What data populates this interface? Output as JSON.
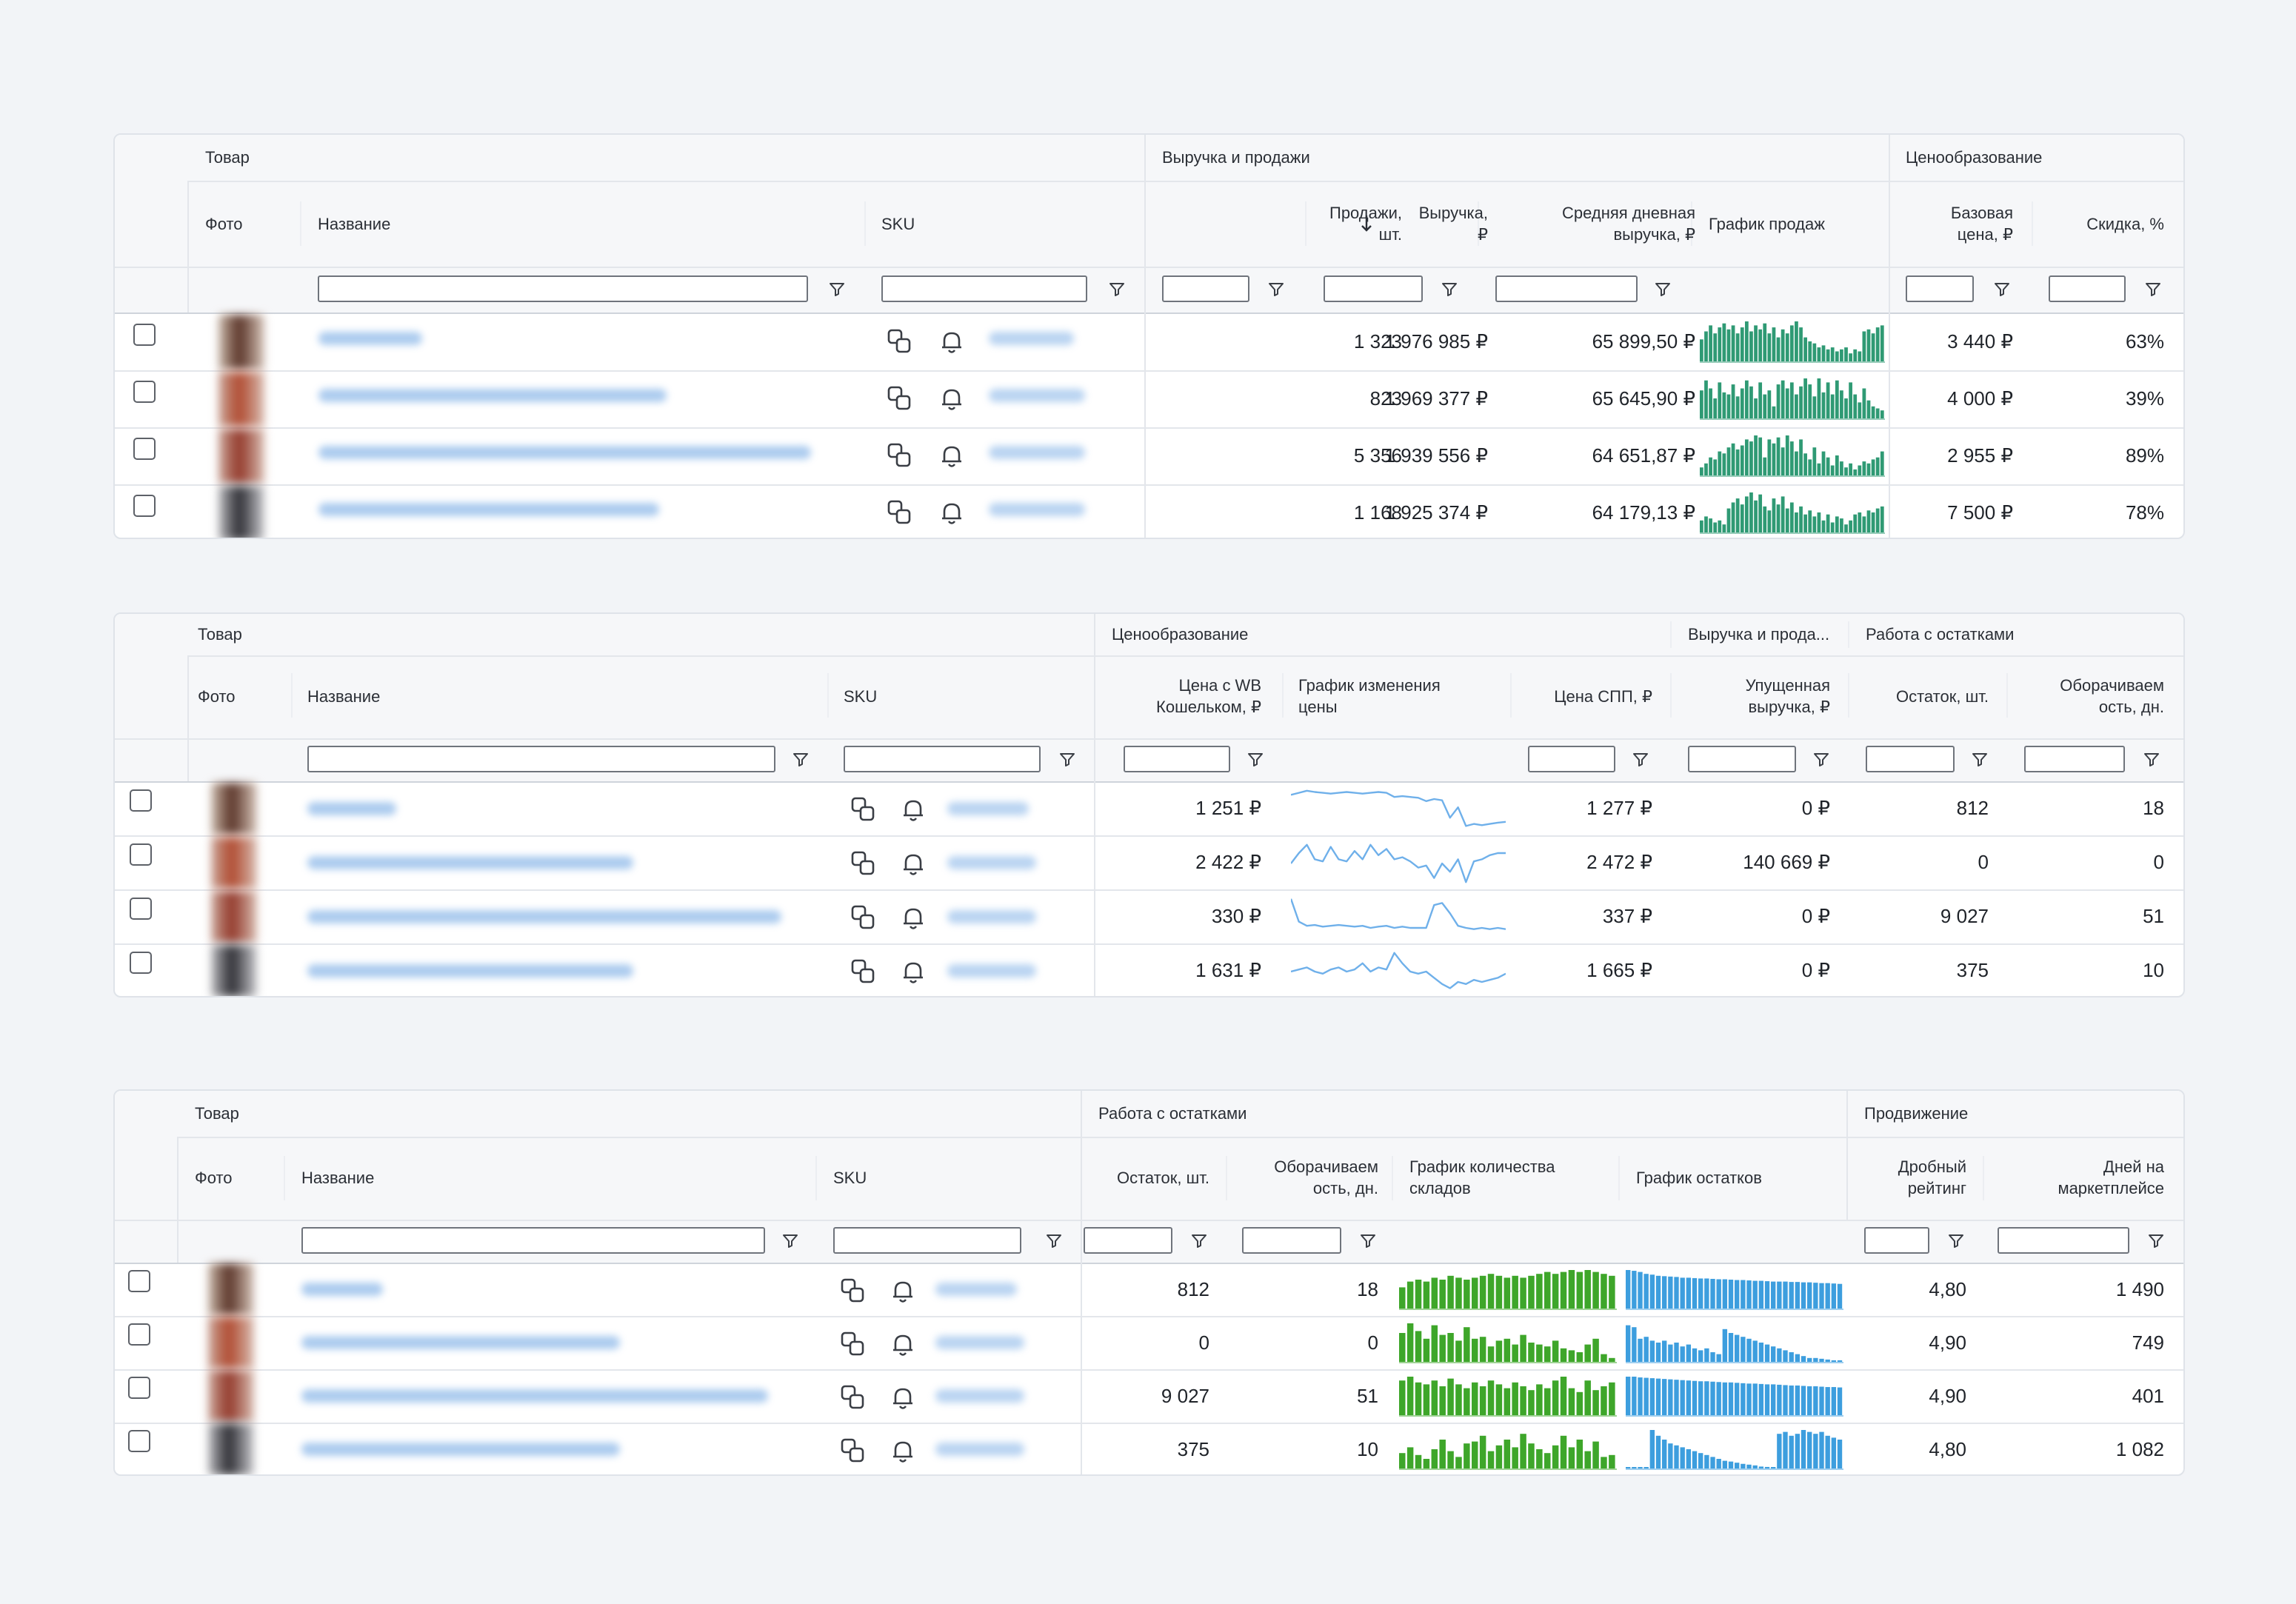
{
  "colors": {
    "sales_bar": "#2f9a74",
    "price_line": "#6fb0ea",
    "warehouse_bar": "#3ea62a",
    "stock_bar": "#3d9ede",
    "link_blur": "#9ec3ec",
    "border": "#dfe3e9"
  },
  "icons": {
    "copy": "copy-icon",
    "bell": "bell-icon",
    "filter": "filter-icon",
    "sort": "arrow-down-icon"
  },
  "tables": [
    {
      "groups": [
        {
          "label": "Товар"
        },
        {
          "label": "Выручка и продажи"
        },
        {
          "label": "Ценообразование"
        }
      ],
      "columns": [
        {
          "label": "Фото"
        },
        {
          "label": "Название"
        },
        {
          "label": "SKU"
        },
        {
          "label": "Продажи,\nшт."
        },
        {
          "label": "Выручка,\n₽"
        },
        {
          "label": "Средняя дневная\nвыручка, ₽"
        },
        {
          "label": "График продаж"
        },
        {
          "label": "Базовая\nцена, ₽"
        },
        {
          "label": "Скидка, %"
        }
      ],
      "rows": [
        {
          "c1": "1 323",
          "c2": "1 976 985 ₽",
          "c3": "65 899,50 ₽",
          "c5": "3 440 ₽",
          "c6": "63%",
          "chart": [
            0.55,
            0.75,
            0.9,
            0.7,
            0.85,
            0.95,
            0.8,
            0.9,
            0.7,
            0.85,
            1.0,
            0.75,
            0.9,
            0.8,
            0.95,
            0.7,
            0.85,
            0.6,
            0.8,
            0.7,
            0.9,
            1.0,
            0.85,
            0.6,
            0.5,
            0.45,
            0.35,
            0.4,
            0.3,
            0.35,
            0.25,
            0.3,
            0.35,
            0.2,
            0.3,
            0.25,
            0.75,
            0.8,
            0.7,
            0.85,
            0.9
          ]
        },
        {
          "c1": "823",
          "c2": "1 969 377 ₽",
          "c3": "65 645,90 ₽",
          "c5": "4 000 ₽",
          "c6": "39%",
          "chart": [
            0.7,
            0.95,
            0.75,
            0.5,
            0.9,
            0.65,
            0.6,
            0.85,
            0.55,
            0.75,
            0.95,
            0.8,
            0.5,
            0.9,
            0.6,
            0.7,
            0.3,
            0.85,
            0.95,
            0.75,
            0.9,
            0.6,
            0.8,
            1.0,
            0.85,
            0.55,
            1.0,
            0.65,
            0.9,
            0.6,
            0.95,
            0.7,
            0.5,
            0.9,
            0.6,
            0.4,
            0.75,
            0.45,
            0.3,
            0.25,
            0.2
          ]
        },
        {
          "c1": "5 356",
          "c2": "1 939 556 ₽",
          "c3": "64 651,87 ₽",
          "c5": "2 955 ₽",
          "c6": "89%",
          "chart": [
            0.2,
            0.3,
            0.45,
            0.4,
            0.6,
            0.55,
            0.7,
            0.8,
            0.65,
            0.75,
            0.9,
            0.85,
            1.0,
            0.95,
            0.45,
            0.9,
            0.8,
            0.95,
            0.7,
            1.0,
            0.85,
            0.6,
            0.9,
            0.55,
            0.4,
            0.7,
            0.3,
            0.6,
            0.45,
            0.25,
            0.5,
            0.35,
            0.2,
            0.3,
            0.15,
            0.25,
            0.35,
            0.3,
            0.4,
            0.45,
            0.6
          ]
        },
        {
          "c1": "1 168",
          "c2": "1 925 374 ₽",
          "c3": "64 179,13 ₽",
          "c5": "7 500 ₽",
          "c6": "78%",
          "chart": [
            0.3,
            0.4,
            0.35,
            0.25,
            0.3,
            0.2,
            0.6,
            0.75,
            0.85,
            0.7,
            0.9,
            1.0,
            0.8,
            0.95,
            0.65,
            0.55,
            0.85,
            0.7,
            0.9,
            0.6,
            0.75,
            0.5,
            0.65,
            0.45,
            0.55,
            0.4,
            0.5,
            0.3,
            0.45,
            0.25,
            0.4,
            0.35,
            0.2,
            0.3,
            0.45,
            0.5,
            0.4,
            0.55,
            0.5,
            0.6,
            0.65
          ]
        }
      ]
    },
    {
      "groups": [
        {
          "label": "Товар"
        },
        {
          "label": "Ценообразование"
        },
        {
          "label": "Выручка и прода..."
        },
        {
          "label": "Работа с остатками"
        }
      ],
      "columns": [
        {
          "label": "Фото"
        },
        {
          "label": "Название"
        },
        {
          "label": "SKU"
        },
        {
          "label": "Цена с WB\nКошельком, ₽"
        },
        {
          "label": "График изменения\nцены"
        },
        {
          "label": "Цена СПП, ₽"
        },
        {
          "label": "Упущенная\nвыручка, ₽"
        },
        {
          "label": "Остаток, шт."
        },
        {
          "label": "Оборачиваем\nость, дн."
        }
      ],
      "rows": [
        {
          "c1": "1 251 ₽",
          "c3": "1 277 ₽",
          "c4": "0 ₽",
          "c5": "812",
          "c6": "18",
          "chart": [
            0.85,
            0.9,
            0.95,
            0.92,
            0.9,
            0.88,
            0.9,
            0.92,
            0.9,
            0.88,
            0.9,
            0.92,
            0.9,
            0.8,
            0.82,
            0.8,
            0.78,
            0.7,
            0.75,
            0.72,
            0.3,
            0.55,
            0.1,
            0.15,
            0.12,
            0.15,
            0.18,
            0.2
          ]
        },
        {
          "c1": "2 422 ₽",
          "c3": "2 472 ₽",
          "c4": "140 669 ₽",
          "c5": "0",
          "c6": "0",
          "chart": [
            0.5,
            0.75,
            0.95,
            0.6,
            0.55,
            0.9,
            0.6,
            0.55,
            0.8,
            0.6,
            0.95,
            0.7,
            0.85,
            0.6,
            0.65,
            0.55,
            0.4,
            0.45,
            0.15,
            0.5,
            0.3,
            0.6,
            0.05,
            0.55,
            0.6,
            0.7,
            0.75,
            0.75
          ]
        },
        {
          "c1": "330 ₽",
          "c3": "337 ₽",
          "c4": "0 ₽",
          "c5": "9 027",
          "c6": "51",
          "chart": [
            0.95,
            0.4,
            0.3,
            0.32,
            0.28,
            0.3,
            0.32,
            0.3,
            0.28,
            0.3,
            0.25,
            0.28,
            0.3,
            0.25,
            0.28,
            0.25,
            0.25,
            0.25,
            0.8,
            0.85,
            0.6,
            0.3,
            0.25,
            0.22,
            0.25,
            0.22,
            0.25,
            0.22
          ]
        },
        {
          "c1": "1 631 ₽",
          "c3": "1 665 ₽",
          "c4": "0 ₽",
          "c5": "375",
          "c6": "10",
          "chart": [
            0.5,
            0.55,
            0.6,
            0.5,
            0.45,
            0.55,
            0.6,
            0.5,
            0.55,
            0.7,
            0.5,
            0.6,
            0.55,
            0.95,
            0.7,
            0.5,
            0.45,
            0.5,
            0.35,
            0.2,
            0.1,
            0.25,
            0.2,
            0.3,
            0.25,
            0.3,
            0.35,
            0.45
          ]
        }
      ]
    },
    {
      "groups": [
        {
          "label": "Товар"
        },
        {
          "label": "Работа с остатками"
        },
        {
          "label": "Продвижение"
        }
      ],
      "columns": [
        {
          "label": "Фото"
        },
        {
          "label": "Название"
        },
        {
          "label": "SKU"
        },
        {
          "label": "Остаток, шт."
        },
        {
          "label": "Оборачиваем\nость, дн."
        },
        {
          "label": "График количества\nскладов"
        },
        {
          "label": "График остатков"
        },
        {
          "label": "Дробный\nрейтинг"
        },
        {
          "label": "Дней на\nмаркетплейсе"
        }
      ],
      "rows": [
        {
          "c1": "812",
          "c2": "18",
          "c5": "4,80",
          "c6": "1 490",
          "chart": [
            0.55,
            0.7,
            0.75,
            0.7,
            0.8,
            0.75,
            0.85,
            0.8,
            0.75,
            0.8,
            0.85,
            0.9,
            0.85,
            0.8,
            0.85,
            0.8,
            0.85,
            0.9,
            0.95,
            0.9,
            0.95,
            1.0,
            0.95,
            1.0,
            0.95,
            0.9,
            0.85
          ],
          "chart2": [
            1.0,
            0.98,
            0.95,
            0.9,
            0.88,
            0.85,
            0.84,
            0.83,
            0.82,
            0.8,
            0.8,
            0.79,
            0.78,
            0.78,
            0.77,
            0.76,
            0.76,
            0.75,
            0.74,
            0.74,
            0.73,
            0.72,
            0.72,
            0.71,
            0.7,
            0.7,
            0.7,
            0.69,
            0.69,
            0.68,
            0.68,
            0.67,
            0.66,
            0.66,
            0.65,
            0.64
          ]
        },
        {
          "c1": "0",
          "c2": "0",
          "c5": "4,90",
          "c6": "749",
          "chart": [
            0.75,
            1.0,
            0.8,
            0.6,
            0.95,
            0.7,
            0.75,
            0.55,
            0.9,
            0.6,
            0.65,
            0.4,
            0.55,
            0.6,
            0.45,
            0.7,
            0.5,
            0.45,
            0.4,
            0.55,
            0.35,
            0.3,
            0.25,
            0.45,
            0.6,
            0.2,
            0.1
          ],
          "chart2": [
            0.95,
            0.9,
            0.6,
            0.65,
            0.55,
            0.5,
            0.55,
            0.45,
            0.5,
            0.4,
            0.45,
            0.35,
            0.3,
            0.35,
            0.25,
            0.2,
            0.85,
            0.75,
            0.7,
            0.65,
            0.6,
            0.55,
            0.5,
            0.45,
            0.4,
            0.35,
            0.3,
            0.25,
            0.2,
            0.15,
            0.1,
            0.1,
            0.08,
            0.06,
            0.04,
            0.04
          ]
        },
        {
          "c1": "9 027",
          "c2": "51",
          "c5": "4,90",
          "c6": "401",
          "chart": [
            0.9,
            1.0,
            0.85,
            0.8,
            0.9,
            0.75,
            0.95,
            0.8,
            0.7,
            0.85,
            0.75,
            0.9,
            0.8,
            0.7,
            0.85,
            0.75,
            0.65,
            0.8,
            0.7,
            0.9,
            1.0,
            0.7,
            0.6,
            0.9,
            0.65,
            0.75,
            0.85
          ],
          "chart2": [
            1.0,
            1.0,
            0.98,
            0.97,
            0.96,
            0.95,
            0.94,
            0.93,
            0.92,
            0.91,
            0.9,
            0.89,
            0.88,
            0.88,
            0.87,
            0.86,
            0.85,
            0.85,
            0.84,
            0.83,
            0.82,
            0.82,
            0.81,
            0.8,
            0.8,
            0.79,
            0.78,
            0.77,
            0.77,
            0.76,
            0.75,
            0.75,
            0.74,
            0.73,
            0.73,
            0.72
          ]
        },
        {
          "c1": "375",
          "c2": "10",
          "c5": "4,80",
          "c6": "1 082",
          "chart": [
            0.4,
            0.55,
            0.35,
            0.25,
            0.5,
            0.75,
            0.45,
            0.3,
            0.65,
            0.7,
            0.85,
            0.45,
            0.6,
            0.75,
            0.55,
            0.9,
            0.65,
            0.5,
            0.4,
            0.6,
            0.85,
            0.55,
            0.75,
            0.45,
            0.7,
            0.3,
            0.35
          ],
          "chart2": [
            0.02,
            0.02,
            0.02,
            0.02,
            1.0,
            0.85,
            0.75,
            0.65,
            0.6,
            0.55,
            0.5,
            0.45,
            0.4,
            0.35,
            0.3,
            0.25,
            0.2,
            0.18,
            0.15,
            0.12,
            0.1,
            0.08,
            0.05,
            0.04,
            0.03,
            0.9,
            0.95,
            0.85,
            0.9,
            1.0,
            0.95,
            0.9,
            0.95,
            0.85,
            0.8,
            0.75
          ]
        }
      ]
    }
  ]
}
